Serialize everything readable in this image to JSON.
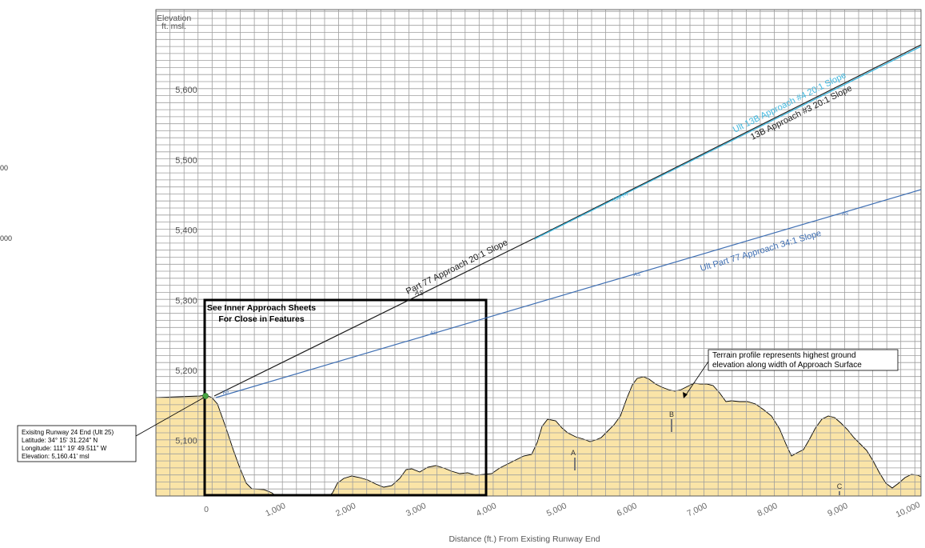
{
  "axes": {
    "y_title_line1": "Elevation",
    "y_title_line2": "ft. msl.",
    "x_title": "Distance (ft.) From Existing Runway End",
    "y_ticks": [
      {
        "value": 5600,
        "label": "5,600"
      },
      {
        "value": 5500,
        "label": "5,500"
      },
      {
        "value": 5400,
        "label": "5,400"
      },
      {
        "value": 5300,
        "label": "5,300"
      },
      {
        "value": 5200,
        "label": "5,200"
      },
      {
        "value": 5100,
        "label": "5,100"
      }
    ],
    "x_ticks": [
      {
        "value": 0,
        "label": "0"
      },
      {
        "value": 1000,
        "label": "1,000"
      },
      {
        "value": 2000,
        "label": "2,000"
      },
      {
        "value": 3000,
        "label": "3,000"
      },
      {
        "value": 4000,
        "label": "4,000"
      },
      {
        "value": 5000,
        "label": "5,000"
      },
      {
        "value": 6000,
        "label": "6,000"
      },
      {
        "value": 7000,
        "label": "7,000"
      },
      {
        "value": 8000,
        "label": "8,000"
      },
      {
        "value": 9000,
        "label": "9,000"
      },
      {
        "value": 10000,
        "label": "10,000"
      }
    ]
  },
  "offpage_fragments": [
    "00",
    "000"
  ],
  "inner_box": {
    "line1": "See Inner Approach Sheets",
    "line2": "For Close in Features"
  },
  "terrain_note": {
    "line1": "Terrain profile represents highest ground",
    "line2": "elevation along width of Approach Surface"
  },
  "runway_callout": {
    "line1": "Exisitng Runway 24 End (Ult 25)",
    "line2": "Latitude: 34° 15' 31.224\" N",
    "line3": "Longitude: 111° 19' 49.511\" W",
    "line4": "Elevation: 5,160.41' msl"
  },
  "surfaces": {
    "part77": {
      "label": "Part 77 Approach 20:1 Slope",
      "color": "#1a1a1a"
    },
    "ult13b": {
      "label": "Ult 13B Approach #4 20:1 Slope",
      "color": "#3fb7de"
    },
    "app13b": {
      "label": "13B Approach #3 20:1 Slope",
      "color": "#1a1a1a"
    },
    "ultpart77": {
      "label": "Ult Part 77 Approach 34:1 Slope",
      "color": "#3f6fb3"
    }
  },
  "obstructions": [
    {
      "label": "A"
    },
    {
      "label": "B"
    },
    {
      "label": "C"
    }
  ],
  "small_marks": {
    "as": "AS",
    "b13": "13B (4)"
  },
  "colors": {
    "terrain_fill": "#fae4a7",
    "grid": "#9e9e9e",
    "runway_marker": "#4aa443"
  }
}
